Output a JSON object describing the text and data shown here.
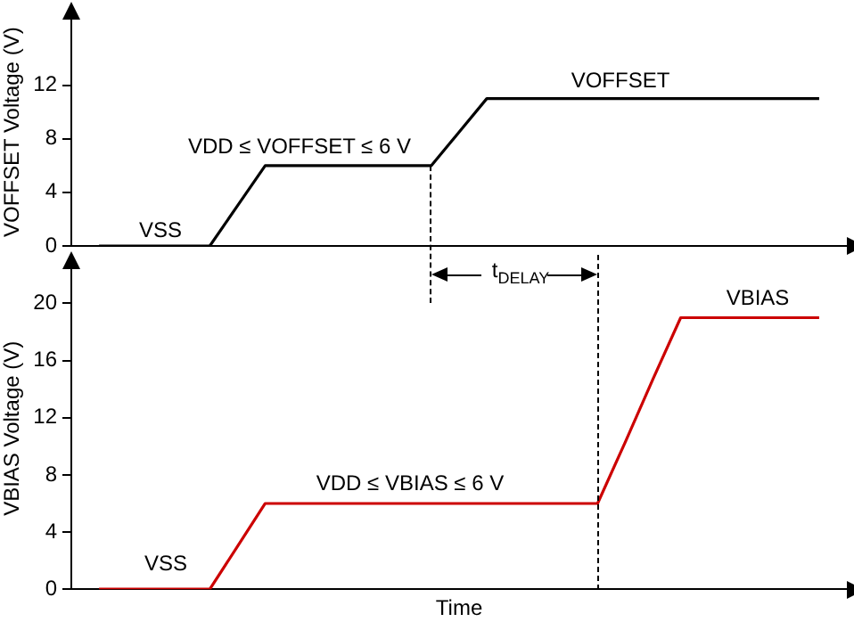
{
  "chart_data": [
    {
      "type": "line",
      "ylabel": "VOFFSET Voltage (V)",
      "categories": [
        null,
        null,
        null,
        null,
        null,
        null,
        null,
        null,
        null,
        null,
        null,
        null,
        null,
        null,
        null,
        null,
        null,
        null,
        null,
        null,
        null,
        null,
        null,
        null,
        null,
        null,
        null,
        null,
        null
      ],
      "series": [
        {
          "color": "#000000",
          "values": [
            null,
            0,
            0,
            0,
            0,
            0,
            3,
            6,
            6,
            6,
            6,
            6,
            6,
            6,
            8.5,
            11,
            11,
            11,
            11,
            11,
            11,
            11,
            11,
            11,
            11,
            11,
            11,
            11,
            null
          ]
        }
      ],
      "ylim": [
        0,
        17
      ],
      "yticks": [
        0,
        4,
        8,
        12
      ],
      "tick_labels": "y",
      "grid": false,
      "legend": false,
      "annotations": [
        "VSS",
        "VDD ≤ VOFFSET ≤ 6 V",
        "VOFFSET",
        "t$_{DELAY}$"
      ]
    },
    {
      "type": "line",
      "ylabel": "VBIAS Voltage (V)",
      "xlabel": "Time",
      "categories": [
        null,
        null,
        null,
        null,
        null,
        null,
        null,
        null,
        null,
        null,
        null,
        null,
        null,
        null,
        null,
        null,
        null,
        null,
        null,
        null,
        null,
        null,
        null,
        null,
        null,
        null,
        null,
        null,
        null
      ],
      "series": [
        {
          "color": "#cc0000",
          "values": [
            null,
            0,
            0,
            0,
            0,
            0,
            3,
            6,
            6,
            6,
            6,
            6,
            6,
            6,
            6,
            6,
            6,
            6,
            6,
            6,
            10.3,
            14.7,
            19,
            19,
            19,
            19,
            19,
            19,
            null
          ]
        }
      ],
      "ylim": [
        0,
        22.5
      ],
      "yticks": [
        0,
        4,
        8,
        12,
        16,
        20
      ],
      "tick_labels": "y",
      "grid": false,
      "legend": false,
      "annotations": [
        "VSS",
        "VDD ≤ VBIAS ≤ 6 V",
        "VBIAS"
      ]
    }
  ]
}
